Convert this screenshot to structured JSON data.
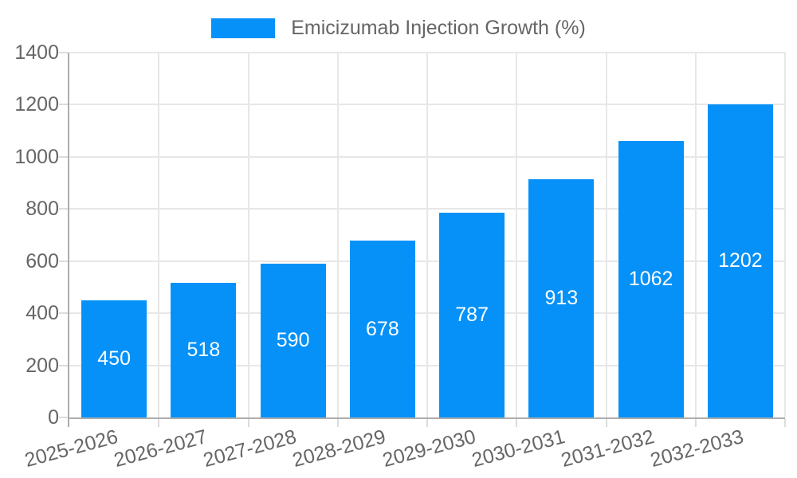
{
  "legend": {
    "label": "Emicizumab Injection Growth (%)"
  },
  "colors": {
    "bar": "#0591F8",
    "grid": "#E7E7E7",
    "axis": "#ADADAD",
    "tick": "#DCDCDC",
    "text": "#666666",
    "value_text": "#FFFFFF",
    "background": "#FFFFFF"
  },
  "chart_data": {
    "type": "bar",
    "title": "Emicizumab Injection Growth (%)",
    "series_name": "Emicizumab Injection Growth (%)",
    "legend_position": "top-center",
    "categories": [
      "2025-2026",
      "2026-2027",
      "2027-2028",
      "2028-2029",
      "2029-2030",
      "2030-2031",
      "2031-2032",
      "2032-2033"
    ],
    "values": [
      450,
      518,
      590,
      678,
      787,
      913,
      1062,
      1202
    ],
    "xlabel": "",
    "ylabel": "",
    "ylim": [
      0,
      1400
    ],
    "yticks": [
      0,
      200,
      400,
      600,
      800,
      1000,
      1200,
      1400
    ],
    "grid": true,
    "x_tick_rotation_deg": -15,
    "value_label_position": "inside-center",
    "bar_width_fraction": 0.73
  }
}
